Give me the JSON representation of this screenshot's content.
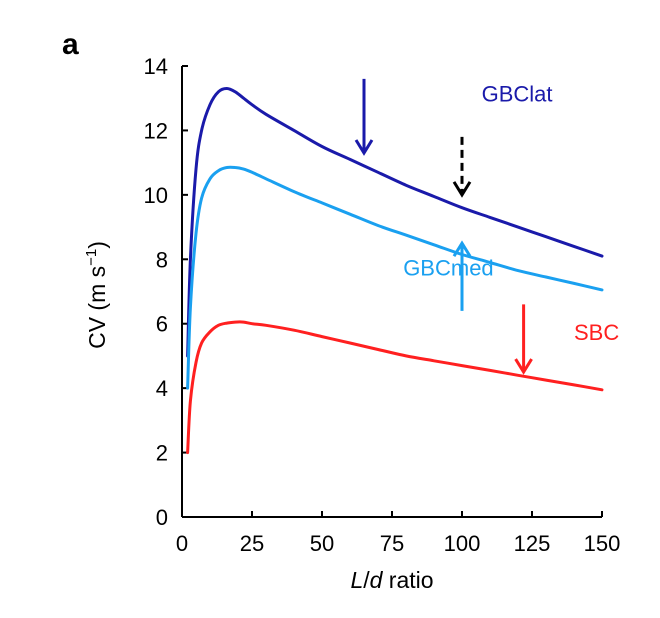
{
  "panel_label": "a",
  "chart_data": {
    "type": "line",
    "title": "",
    "xlabel_italic": "L",
    "xlabel_sep": "/",
    "xlabel_italic2": "d",
    "xlabel_rest": " ratio",
    "ylabel_main": "CV (m s",
    "ylabel_sup": "−1",
    "ylabel_close": ")",
    "xlim": [
      0,
      150
    ],
    "ylim": [
      0,
      14
    ],
    "xticks": [
      0,
      25,
      50,
      75,
      100,
      125,
      150
    ],
    "yticks": [
      0,
      2,
      4,
      6,
      8,
      10,
      12,
      14
    ],
    "grid": false,
    "series": [
      {
        "name": "GBClat",
        "color": "#1a1aaa",
        "x": [
          2,
          3,
          5,
          7,
          10,
          13,
          16,
          19,
          22,
          25,
          30,
          40,
          50,
          60,
          70,
          80,
          90,
          100,
          110,
          120,
          130,
          140,
          150
        ],
        "y": [
          5.0,
          8.0,
          10.8,
          12.0,
          12.8,
          13.2,
          13.3,
          13.2,
          13.0,
          12.8,
          12.5,
          12.0,
          11.5,
          11.1,
          10.7,
          10.3,
          9.95,
          9.6,
          9.3,
          9.0,
          8.7,
          8.4,
          8.1
        ]
      },
      {
        "name": "GBCmed",
        "color": "#1aa0f0",
        "x": [
          2,
          3,
          5,
          7,
          10,
          13,
          16,
          19,
          22,
          25,
          30,
          40,
          50,
          60,
          70,
          80,
          90,
          100,
          110,
          120,
          130,
          140,
          150
        ],
        "y": [
          4.0,
          6.5,
          8.8,
          9.9,
          10.5,
          10.75,
          10.85,
          10.85,
          10.8,
          10.7,
          10.5,
          10.1,
          9.75,
          9.4,
          9.05,
          8.75,
          8.45,
          8.15,
          7.9,
          7.65,
          7.45,
          7.25,
          7.05
        ]
      },
      {
        "name": "SBC",
        "color": "#ff2020",
        "x": [
          2,
          3,
          5,
          7,
          10,
          13,
          16,
          19,
          22,
          25,
          30,
          40,
          50,
          60,
          70,
          80,
          90,
          100,
          110,
          120,
          130,
          140,
          150
        ],
        "y": [
          2.0,
          3.6,
          4.8,
          5.4,
          5.75,
          5.95,
          6.02,
          6.05,
          6.05,
          6.0,
          5.95,
          5.8,
          5.6,
          5.4,
          5.2,
          5.0,
          4.85,
          4.7,
          4.55,
          4.4,
          4.25,
          4.1,
          3.95
        ]
      }
    ],
    "series_labels": [
      {
        "text": "GBClat",
        "color": "#1a1aaa",
        "x": 107,
        "y": 12.9
      },
      {
        "text": "GBCmed",
        "color": "#1aa0f0",
        "x": 79,
        "y": 7.5
      },
      {
        "text": "SBC",
        "color": "#ff2020",
        "x": 140,
        "y": 5.5
      }
    ],
    "arrows": [
      {
        "name": "gbclat-arrow",
        "direction": "down",
        "style": "solid",
        "color": "#1a1aaa",
        "x": 65,
        "y_from": 13.6,
        "y_to": 11.3
      },
      {
        "name": "reference-arrow",
        "direction": "down",
        "style": "dashed",
        "color": "#000000",
        "x": 100,
        "y_from": 11.8,
        "y_to": 10.0
      },
      {
        "name": "gbcmed-arrow",
        "direction": "up",
        "style": "solid",
        "color": "#1aa0f0",
        "x": 100,
        "y_from": 6.4,
        "y_to": 8.5
      },
      {
        "name": "sbc-arrow",
        "direction": "down",
        "style": "solid",
        "color": "#ff2020",
        "x": 122,
        "y_from": 6.6,
        "y_to": 4.5
      }
    ]
  }
}
